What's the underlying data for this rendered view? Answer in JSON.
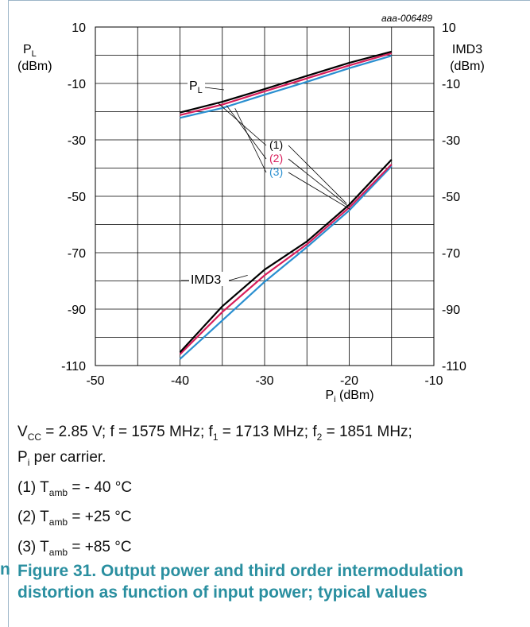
{
  "chart_data": {
    "type": "line",
    "watermark": "aaa-006489",
    "x_axis": {
      "label": "Pi (dBm)",
      "ticks": [
        -50,
        -40,
        -30,
        -20,
        -10
      ],
      "range": [
        -50,
        -10
      ]
    },
    "y_left": {
      "label_main": "P",
      "label_sub": "L",
      "label_unit": "(dBm)",
      "ticks": [
        10,
        -10,
        -30,
        -50,
        -70,
        -90,
        -110
      ],
      "range": [
        -110,
        10
      ]
    },
    "y_right": {
      "label_main": "IMD3",
      "label_unit": "(dBm)",
      "ticks": [
        10,
        -10,
        -30,
        -50,
        -70,
        -90,
        -110
      ]
    },
    "grid": true,
    "annotations": {
      "pl": "PL",
      "imd3": "IMD3",
      "s1": "(1)",
      "s2": "(2)",
      "s3": "(3)"
    },
    "series": [
      {
        "name": "(1)",
        "color": "#000000",
        "pl": [
          [
            -40,
            -20.3
          ],
          [
            -35,
            -16.5
          ],
          [
            -30,
            -12
          ],
          [
            -25,
            -7.3
          ],
          [
            -20,
            -2.7
          ],
          [
            -15,
            1.3
          ]
        ],
        "imd3": [
          [
            -40,
            -105.3
          ],
          [
            -35,
            -89
          ],
          [
            -30,
            -76
          ],
          [
            -25,
            -66
          ],
          [
            -20,
            -53
          ],
          [
            -15,
            -37
          ]
        ]
      },
      {
        "name": "(2)",
        "color": "#d81e5b",
        "pl": [
          [
            -40,
            -21.2
          ],
          [
            -35,
            -17.5
          ],
          [
            -30,
            -12.8
          ],
          [
            -25,
            -8.2
          ],
          [
            -20,
            -3.6
          ],
          [
            -15,
            0.7
          ]
        ],
        "imd3": [
          [
            -40,
            -106
          ],
          [
            -35,
            -91
          ],
          [
            -30,
            -78
          ],
          [
            -25,
            -67
          ],
          [
            -20,
            -54
          ],
          [
            -15,
            -38.7
          ]
        ]
      },
      {
        "name": "(3)",
        "color": "#2a8fd0",
        "pl": [
          [
            -40,
            -22.2
          ],
          [
            -35,
            -18.7
          ],
          [
            -30,
            -14
          ],
          [
            -25,
            -9.4
          ],
          [
            -20,
            -4.6
          ],
          [
            -15,
            -0.2
          ]
        ],
        "imd3": [
          [
            -40,
            -107.7
          ],
          [
            -35,
            -94
          ],
          [
            -30,
            -80.3
          ],
          [
            -25,
            -68
          ],
          [
            -20,
            -55
          ],
          [
            -15,
            -39.3
          ]
        ]
      }
    ]
  },
  "caption": {
    "line1": {
      "v": "V",
      "v_sub": "CC",
      "rest1": " = 2.85 V; f = 1575 MHz; f",
      "f1_sub": "1",
      "rest2": " = 1713 MHz; f",
      "f2_sub": "2",
      "rest3": " = 1851 MHz;"
    },
    "line2": {
      "p": "P",
      "p_sub": "i",
      "rest": " per carrier."
    },
    "items": [
      {
        "prefix": "(1) T",
        "sub": "amb",
        "rest": " = - 40 °C"
      },
      {
        "prefix": "(2) T",
        "sub": "amb",
        "rest": " = +25 °C"
      },
      {
        "prefix": "(3) T",
        "sub": "amb",
        "rest": " = +85 °C"
      }
    ]
  },
  "figure": {
    "letter": "n",
    "title": "Figure 31.  Output power and third order intermodulation distortion as function of input power; typical values"
  }
}
